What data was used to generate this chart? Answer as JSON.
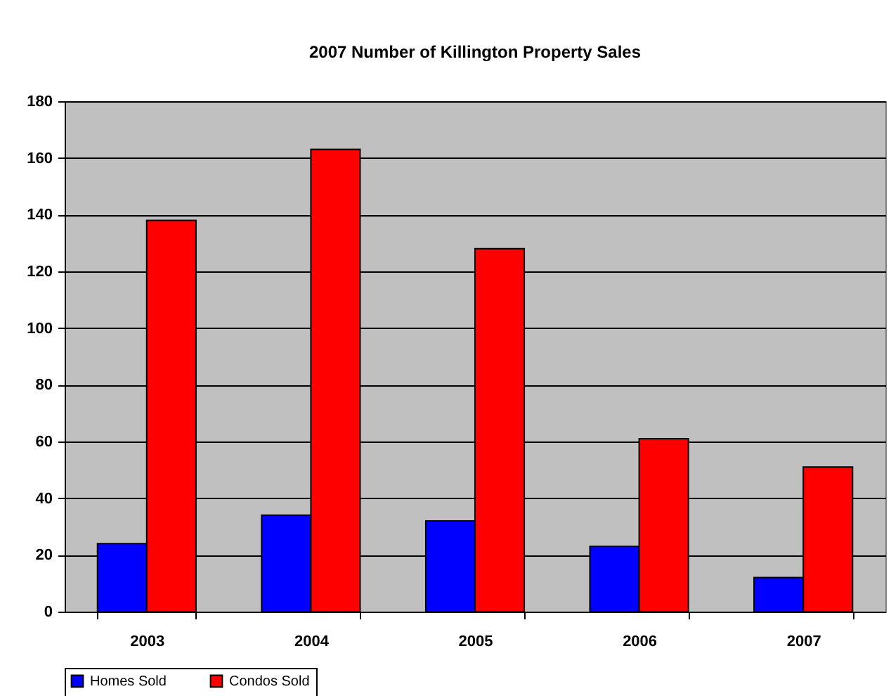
{
  "chart_data": {
    "type": "bar",
    "title": "2007 Number of Killington Property Sales",
    "categories": [
      "2003",
      "2004",
      "2005",
      "2006",
      "2007"
    ],
    "series": [
      {
        "name": "Homes Sold",
        "color": "#0000ff",
        "values": [
          24,
          34,
          32,
          23,
          12
        ]
      },
      {
        "name": "Condos Sold",
        "color": "#ff0000",
        "values": [
          138,
          163,
          128,
          61,
          51
        ]
      }
    ],
    "ylim": [
      0,
      180
    ],
    "yticks": [
      0,
      20,
      40,
      60,
      80,
      100,
      120,
      140,
      160,
      180
    ],
    "grid": "y",
    "legend": "bottom"
  }
}
